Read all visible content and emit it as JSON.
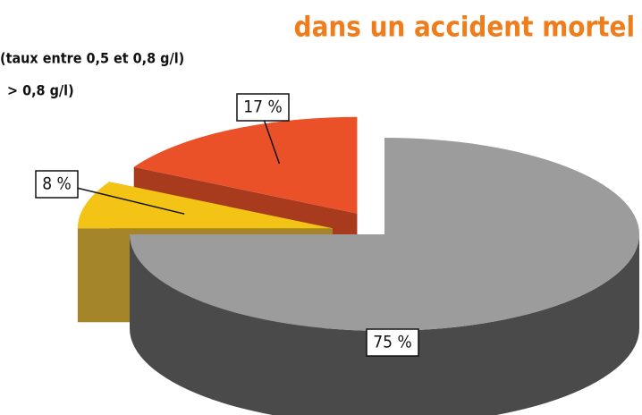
{
  "chart_data": {
    "type": "pie",
    "title": "dans un accident mortel",
    "categories": [
      null,
      "(taux entre 0,5 et 0,8 g/l)",
      "> 0,8 g/l)"
    ],
    "values": [
      75,
      8,
      17
    ],
    "value_labels": [
      "75 %",
      "8 %",
      "17 %"
    ],
    "colors": [
      "#9c9c9c",
      "#f3c316",
      "#ea5128"
    ],
    "side_colors": [
      "#4a4a4a",
      "#a5852a",
      "#a83a1e"
    ]
  }
}
